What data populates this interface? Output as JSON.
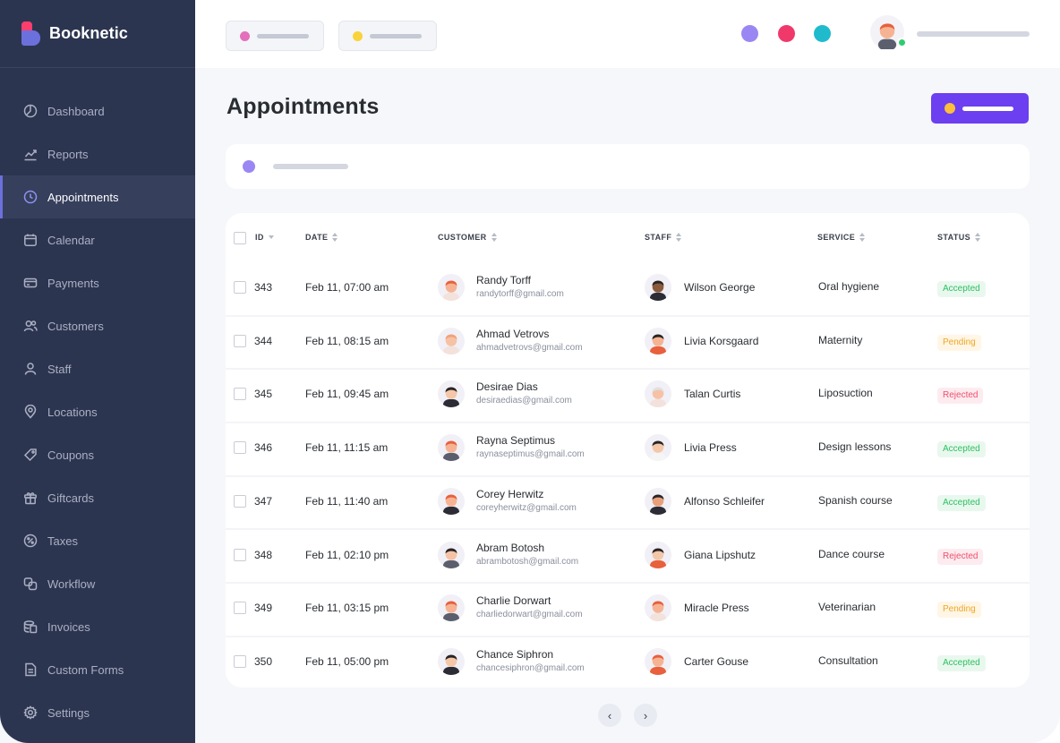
{
  "app": {
    "brand": "Booknetic"
  },
  "sidebar": {
    "items": [
      {
        "label": "Dashboard",
        "icon": "dashboard-icon"
      },
      {
        "label": "Reports",
        "icon": "reports-icon"
      },
      {
        "label": "Appointments",
        "icon": "clock-icon",
        "active": true
      },
      {
        "label": "Calendar",
        "icon": "calendar-icon"
      },
      {
        "label": "Payments",
        "icon": "credit-card-icon"
      },
      {
        "label": "Customers",
        "icon": "users-icon"
      },
      {
        "label": "Staff",
        "icon": "user-icon"
      },
      {
        "label": "Locations",
        "icon": "map-pin-icon"
      },
      {
        "label": "Coupons",
        "icon": "tag-icon"
      },
      {
        "label": "Giftcards",
        "icon": "gift-icon"
      },
      {
        "label": "Taxes",
        "icon": "percent-icon"
      },
      {
        "label": "Workflow",
        "icon": "workflow-icon"
      },
      {
        "label": "Invoices",
        "icon": "invoice-icon"
      },
      {
        "label": "Custom Forms",
        "icon": "document-icon"
      },
      {
        "label": "Settings",
        "icon": "gear-icon"
      }
    ]
  },
  "header": {
    "pill_colors": [
      "#e46fbc",
      "#f8d33b"
    ],
    "swatches": [
      "#9a87f3",
      "#f0386b",
      "#1fbbcc"
    ],
    "online_color": "#2ecc71"
  },
  "main": {
    "title": "Appointments",
    "accent": "#6c3ff0"
  },
  "table": {
    "columns": {
      "id": "ID",
      "date": "DATE",
      "customer": "CUSTOMER",
      "staff": "STAFF",
      "service": "SERVICE",
      "status": "STATUS"
    },
    "rows": [
      {
        "id": "343",
        "date": "Feb 11, 07:00 am",
        "customer": "Randy Torff",
        "email": "randytorff@gmail.com",
        "staff": "Wilson George",
        "service": "Oral hygiene",
        "status": "Accepted"
      },
      {
        "id": "344",
        "date": "Feb 11, 08:15 am",
        "customer": "Ahmad Vetrovs",
        "email": "ahmadvetrovs@gmail.com",
        "staff": "Livia Korsgaard",
        "service": "Maternity",
        "status": "Pending"
      },
      {
        "id": "345",
        "date": "Feb 11, 09:45 am",
        "customer": "Desirae Dias",
        "email": "desiraedias@gmail.com",
        "staff": "Talan Curtis",
        "service": "Liposuction",
        "status": "Rejected"
      },
      {
        "id": "346",
        "date": "Feb 11, 11:15 am",
        "customer": "Rayna Septimus",
        "email": "raynaseptimus@gmail.com",
        "staff": "Livia Press",
        "service": "Design lessons",
        "status": "Accepted"
      },
      {
        "id": "347",
        "date": "Feb 11, 11:40 am",
        "customer": "Corey Herwitz",
        "email": "coreyherwitz@gmail.com",
        "staff": "Alfonso Schleifer",
        "service": "Spanish course",
        "status": "Accepted"
      },
      {
        "id": "348",
        "date": "Feb 11, 02:10 pm",
        "customer": "Abram Botosh",
        "email": "abrambotosh@gmail.com",
        "staff": "Giana Lipshutz",
        "service": "Dance course",
        "status": "Rejected"
      },
      {
        "id": "349",
        "date": "Feb 11, 03:15 pm",
        "customer": "Charlie Dorwart",
        "email": "charliedorwart@gmail.com",
        "staff": "Miracle Press",
        "service": "Veterinarian",
        "status": "Pending"
      },
      {
        "id": "350",
        "date": "Feb 11, 05:00 pm",
        "customer": "Chance Siphron",
        "email": "chancesiphron@gmail.com",
        "staff": "Carter Gouse",
        "service": "Consultation",
        "status": "Accepted"
      }
    ]
  },
  "pagination": {
    "prev": "‹",
    "next": "›"
  }
}
